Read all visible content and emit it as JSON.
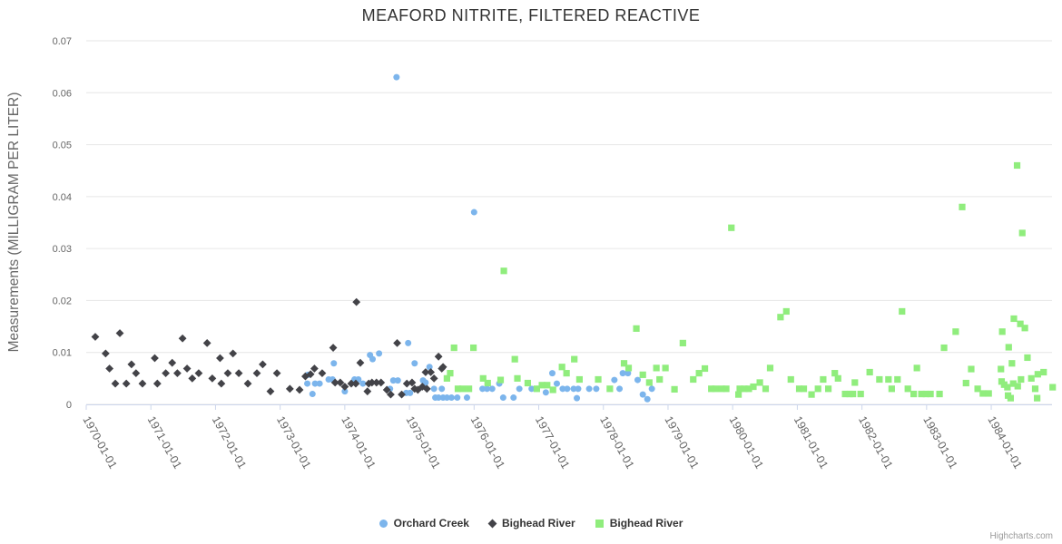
{
  "chart": {
    "title": "MEAFORD NITRITE, FILTERED REACTIVE",
    "credits_label": "Highcharts.com",
    "colors": {
      "grid_line": "#e6e6e6",
      "axis_line": "#ccd6eb",
      "tick_label": "#666666",
      "title_text": "#333333",
      "legend_text": "#333333",
      "credits_text": "#999999"
    }
  },
  "chart_data": {
    "type": "scatter",
    "title": "MEAFORD NITRITE, FILTERED REACTIVE",
    "xlabel": "",
    "ylabel": "Measurements (MILLIGRAM PER LITER)",
    "ylim": [
      0,
      0.07
    ],
    "y_ticks": [
      0,
      0.01,
      0.02,
      0.03,
      0.04,
      0.05,
      0.06,
      0.07
    ],
    "x_tick_labels": [
      "1970-01-01",
      "1971-01-01",
      "1972-01-01",
      "1973-01-01",
      "1974-01-01",
      "1975-01-01",
      "1976-01-01",
      "1977-01-01",
      "1978-01-01",
      "1979-01-01",
      "1980-01-01",
      "1981-01-01",
      "1982-01-01",
      "1983-01-01",
      "1984-01-01"
    ],
    "x_axis_unit": "decimal_year",
    "x_range": [
      1970,
      1984.94
    ],
    "grid": true,
    "legend_position": "bottom-center",
    "series": [
      {
        "name": "Orchard Creek",
        "marker": "circle",
        "color": "#7cb5ec",
        "points": [
          [
            1973.42,
            0.004
          ],
          [
            1973.43,
            0.0057
          ],
          [
            1973.5,
            0.002
          ],
          [
            1973.54,
            0.004
          ],
          [
            1973.61,
            0.004
          ],
          [
            1973.75,
            0.0048
          ],
          [
            1973.81,
            0.0048
          ],
          [
            1973.83,
            0.0079
          ],
          [
            1974.0,
            0.0025
          ],
          [
            1974.15,
            0.0048
          ],
          [
            1974.21,
            0.0048
          ],
          [
            1974.28,
            0.004
          ],
          [
            1974.39,
            0.0095
          ],
          [
            1974.43,
            0.0087
          ],
          [
            1974.53,
            0.0098
          ],
          [
            1974.7,
            0.003
          ],
          [
            1974.75,
            0.0046
          ],
          [
            1974.8,
            0.063
          ],
          [
            1974.82,
            0.0046
          ],
          [
            1974.95,
            0.0022
          ],
          [
            1974.98,
            0.0118
          ],
          [
            1975.01,
            0.0022
          ],
          [
            1975.08,
            0.0079
          ],
          [
            1975.21,
            0.0046
          ],
          [
            1975.25,
            0.0042
          ],
          [
            1975.31,
            0.0072
          ],
          [
            1975.38,
            0.003
          ],
          [
            1975.4,
            0.0013
          ],
          [
            1975.45,
            0.0013
          ],
          [
            1975.5,
            0.003
          ],
          [
            1975.52,
            0.0013
          ],
          [
            1975.58,
            0.0013
          ],
          [
            1975.65,
            0.0013
          ],
          [
            1975.74,
            0.0013
          ],
          [
            1975.89,
            0.0013
          ],
          [
            1976.0,
            0.037
          ],
          [
            1976.13,
            0.003
          ],
          [
            1976.2,
            0.003
          ],
          [
            1976.28,
            0.003
          ],
          [
            1976.39,
            0.004
          ],
          [
            1976.45,
            0.0013
          ],
          [
            1976.61,
            0.0013
          ],
          [
            1976.7,
            0.003
          ],
          [
            1976.89,
            0.003
          ],
          [
            1977.11,
            0.0023
          ],
          [
            1977.21,
            0.006
          ],
          [
            1977.28,
            0.004
          ],
          [
            1977.37,
            0.003
          ],
          [
            1977.44,
            0.003
          ],
          [
            1977.54,
            0.003
          ],
          [
            1977.59,
            0.0012
          ],
          [
            1977.61,
            0.003
          ],
          [
            1977.78,
            0.003
          ],
          [
            1977.89,
            0.003
          ],
          [
            1978.17,
            0.0047
          ],
          [
            1978.25,
            0.003
          ],
          [
            1978.3,
            0.006
          ],
          [
            1978.38,
            0.006
          ],
          [
            1978.53,
            0.0047
          ],
          [
            1978.61,
            0.0019
          ],
          [
            1978.68,
            0.001
          ],
          [
            1978.75,
            0.003
          ]
        ]
      },
      {
        "name": "Bighead River",
        "marker": "diamond",
        "color": "#434348",
        "points": [
          [
            1970.14,
            0.013
          ],
          [
            1970.3,
            0.0098
          ],
          [
            1970.36,
            0.0069
          ],
          [
            1970.45,
            0.004
          ],
          [
            1970.52,
            0.0137
          ],
          [
            1970.62,
            0.004
          ],
          [
            1970.7,
            0.0077
          ],
          [
            1970.77,
            0.006
          ],
          [
            1970.87,
            0.004
          ],
          [
            1971.06,
            0.0089
          ],
          [
            1971.1,
            0.004
          ],
          [
            1971.23,
            0.006
          ],
          [
            1971.33,
            0.008
          ],
          [
            1971.41,
            0.006
          ],
          [
            1971.49,
            0.0127
          ],
          [
            1971.56,
            0.0069
          ],
          [
            1971.64,
            0.005
          ],
          [
            1971.74,
            0.006
          ],
          [
            1971.87,
            0.0118
          ],
          [
            1971.95,
            0.005
          ],
          [
            1972.07,
            0.0089
          ],
          [
            1972.09,
            0.004
          ],
          [
            1972.19,
            0.006
          ],
          [
            1972.27,
            0.0098
          ],
          [
            1972.36,
            0.006
          ],
          [
            1972.5,
            0.004
          ],
          [
            1972.64,
            0.006
          ],
          [
            1972.73,
            0.0077
          ],
          [
            1972.85,
            0.0025
          ],
          [
            1972.95,
            0.006
          ],
          [
            1973.15,
            0.003
          ],
          [
            1973.3,
            0.0028
          ],
          [
            1973.39,
            0.0054
          ],
          [
            1973.47,
            0.0058
          ],
          [
            1973.53,
            0.0069
          ],
          [
            1973.65,
            0.006
          ],
          [
            1973.82,
            0.0109
          ],
          [
            1973.85,
            0.0042
          ],
          [
            1973.93,
            0.0042
          ],
          [
            1974.0,
            0.0034
          ],
          [
            1974.1,
            0.004
          ],
          [
            1974.17,
            0.004
          ],
          [
            1974.18,
            0.0197
          ],
          [
            1974.24,
            0.008
          ],
          [
            1974.35,
            0.0025
          ],
          [
            1974.37,
            0.004
          ],
          [
            1974.42,
            0.0042
          ],
          [
            1974.49,
            0.0042
          ],
          [
            1974.56,
            0.0042
          ],
          [
            1974.65,
            0.0028
          ],
          [
            1974.71,
            0.0019
          ],
          [
            1974.81,
            0.0118
          ],
          [
            1974.88,
            0.0019
          ],
          [
            1974.96,
            0.004
          ],
          [
            1975.04,
            0.0042
          ],
          [
            1975.08,
            0.003
          ],
          [
            1975.13,
            0.0028
          ],
          [
            1975.2,
            0.0034
          ],
          [
            1975.25,
            0.0062
          ],
          [
            1975.27,
            0.003
          ],
          [
            1975.33,
            0.0062
          ],
          [
            1975.38,
            0.005
          ],
          [
            1975.45,
            0.0092
          ],
          [
            1975.5,
            0.0069
          ],
          [
            1975.52,
            0.0072
          ]
        ]
      },
      {
        "name": "Bighead River",
        "marker": "square",
        "color": "#90ed7d",
        "points": [
          [
            1975.58,
            0.005
          ],
          [
            1975.63,
            0.006
          ],
          [
            1975.69,
            0.0109
          ],
          [
            1975.75,
            0.003
          ],
          [
            1975.82,
            0.003
          ],
          [
            1975.92,
            0.003
          ],
          [
            1975.99,
            0.0109
          ],
          [
            1976.14,
            0.005
          ],
          [
            1976.21,
            0.0041
          ],
          [
            1976.41,
            0.0047
          ],
          [
            1976.46,
            0.0257
          ],
          [
            1976.63,
            0.0087
          ],
          [
            1976.67,
            0.005
          ],
          [
            1976.83,
            0.0041
          ],
          [
            1976.97,
            0.003
          ],
          [
            1977.05,
            0.0037
          ],
          [
            1977.13,
            0.0037
          ],
          [
            1977.22,
            0.0028
          ],
          [
            1977.36,
            0.0072
          ],
          [
            1977.43,
            0.006
          ],
          [
            1977.55,
            0.0087
          ],
          [
            1977.63,
            0.0048
          ],
          [
            1977.92,
            0.0048
          ],
          [
            1978.1,
            0.003
          ],
          [
            1978.32,
            0.0079
          ],
          [
            1978.39,
            0.007
          ],
          [
            1978.51,
            0.0146
          ],
          [
            1978.61,
            0.0057
          ],
          [
            1978.71,
            0.0042
          ],
          [
            1978.82,
            0.007
          ],
          [
            1978.87,
            0.0048
          ],
          [
            1978.96,
            0.007
          ],
          [
            1979.1,
            0.0029
          ],
          [
            1979.23,
            0.0118
          ],
          [
            1979.39,
            0.0048
          ],
          [
            1979.48,
            0.006
          ],
          [
            1979.57,
            0.0069
          ],
          [
            1979.67,
            0.003
          ],
          [
            1979.73,
            0.003
          ],
          [
            1979.83,
            0.003
          ],
          [
            1979.9,
            0.003
          ],
          [
            1979.98,
            0.034
          ],
          [
            1980.09,
            0.0019
          ],
          [
            1980.11,
            0.003
          ],
          [
            1980.18,
            0.003
          ],
          [
            1980.25,
            0.003
          ],
          [
            1980.32,
            0.0034
          ],
          [
            1980.42,
            0.0042
          ],
          [
            1980.51,
            0.003
          ],
          [
            1980.58,
            0.007
          ],
          [
            1980.74,
            0.0168
          ],
          [
            1980.83,
            0.0179
          ],
          [
            1980.9,
            0.0048
          ],
          [
            1981.03,
            0.003
          ],
          [
            1981.1,
            0.003
          ],
          [
            1981.22,
            0.0019
          ],
          [
            1981.32,
            0.003
          ],
          [
            1981.4,
            0.0048
          ],
          [
            1981.48,
            0.003
          ],
          [
            1981.58,
            0.006
          ],
          [
            1981.63,
            0.005
          ],
          [
            1981.74,
            0.002
          ],
          [
            1981.81,
            0.002
          ],
          [
            1981.86,
            0.002
          ],
          [
            1981.89,
            0.0042
          ],
          [
            1981.98,
            0.002
          ],
          [
            1982.12,
            0.0062
          ],
          [
            1982.27,
            0.0048
          ],
          [
            1982.41,
            0.0048
          ],
          [
            1982.46,
            0.003
          ],
          [
            1982.55,
            0.0048
          ],
          [
            1982.62,
            0.0179
          ],
          [
            1982.71,
            0.003
          ],
          [
            1982.8,
            0.002
          ],
          [
            1982.85,
            0.007
          ],
          [
            1982.92,
            0.002
          ],
          [
            1982.99,
            0.002
          ],
          [
            1983.06,
            0.002
          ],
          [
            1983.2,
            0.002
          ],
          [
            1983.27,
            0.0109
          ],
          [
            1983.45,
            0.014
          ],
          [
            1983.55,
            0.038
          ],
          [
            1983.61,
            0.0041
          ],
          [
            1983.69,
            0.0068
          ],
          [
            1983.79,
            0.003
          ],
          [
            1983.87,
            0.0021
          ],
          [
            1983.96,
            0.0021
          ],
          [
            1984.15,
            0.0068
          ],
          [
            1984.16,
            0.0044
          ],
          [
            1984.17,
            0.014
          ],
          [
            1984.2,
            0.0038
          ],
          [
            1984.25,
            0.0033
          ],
          [
            1984.26,
            0.0017
          ],
          [
            1984.27,
            0.011
          ],
          [
            1984.3,
            0.0012
          ],
          [
            1984.32,
            0.0079
          ],
          [
            1984.34,
            0.004
          ],
          [
            1984.35,
            0.0165
          ],
          [
            1984.4,
            0.046
          ],
          [
            1984.41,
            0.0035
          ],
          [
            1984.45,
            0.0155
          ],
          [
            1984.46,
            0.0048
          ],
          [
            1984.48,
            0.033
          ],
          [
            1984.52,
            0.0147
          ],
          [
            1984.56,
            0.009
          ],
          [
            1984.62,
            0.005
          ],
          [
            1984.68,
            0.003
          ],
          [
            1984.71,
            0.0012
          ],
          [
            1984.72,
            0.0058
          ],
          [
            1984.81,
            0.0062
          ],
          [
            1984.95,
            0.0033
          ]
        ]
      }
    ]
  }
}
